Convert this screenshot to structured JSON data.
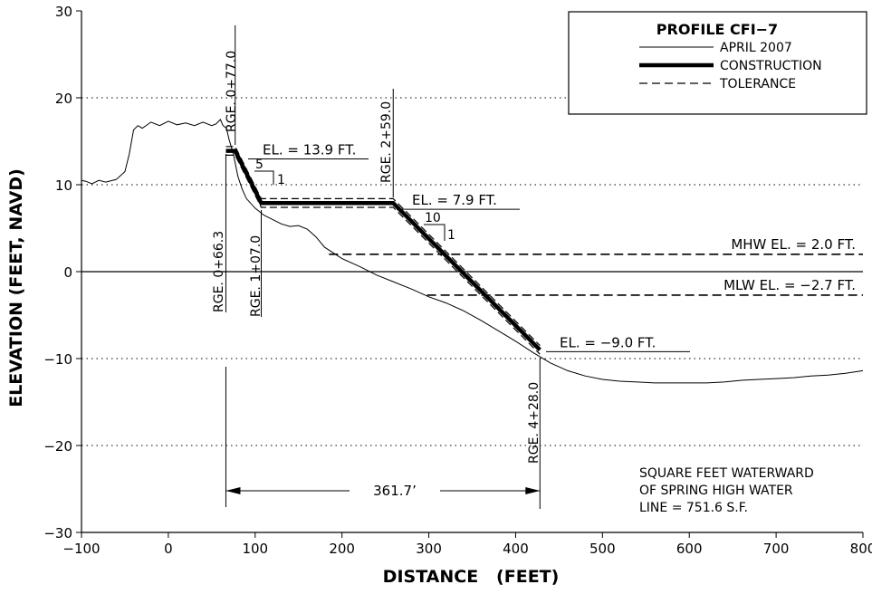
{
  "chart_data": {
    "type": "line",
    "xlabel": "DISTANCE   (FEET)",
    "ylabel": "ELEVATION  (FEET, NAVD)",
    "xlim": [
      -100,
      800
    ],
    "ylim": [
      -30,
      30
    ],
    "x_ticks": [
      -100,
      0,
      100,
      200,
      300,
      400,
      500,
      600,
      700,
      800
    ],
    "y_ticks": [
      -30,
      -20,
      -10,
      0,
      10,
      20,
      30
    ],
    "x_tick_labels": [
      "−100",
      "0",
      "100",
      "200",
      "300",
      "400",
      "500",
      "600",
      "700",
      "800"
    ],
    "y_tick_labels": [
      "−30",
      "−20",
      "−10",
      "0",
      "10",
      "20",
      "30"
    ],
    "grid": "dotted horizontal at 20, 10, -10, -20; solid zero line",
    "legend": {
      "title": "PROFILE CFI−7",
      "placement": "top-right",
      "entries": [
        {
          "label": "APRIL 2007",
          "style": "thin solid"
        },
        {
          "label": "CONSTRUCTION",
          "style": "thick solid"
        },
        {
          "label": "TOLERANCE",
          "style": "dashed"
        }
      ]
    },
    "series": [
      {
        "name": "APRIL 2007",
        "x": [
          -100,
          -95,
          -88,
          -80,
          -72,
          -60,
          -50,
          -45,
          -40,
          -35,
          -30,
          -20,
          -10,
          0,
          10,
          20,
          30,
          40,
          50,
          55,
          60,
          63,
          67,
          70,
          75,
          80,
          85,
          90,
          100,
          110,
          120,
          130,
          140,
          150,
          160,
          170,
          180,
          200,
          220,
          240,
          260,
          280,
          300,
          320,
          340,
          360,
          380,
          400,
          420,
          440,
          460,
          480,
          500,
          520,
          540,
          560,
          580,
          600,
          620,
          640,
          660,
          680,
          700,
          720,
          740,
          760,
          780,
          800
        ],
        "y": [
          10.5,
          10.4,
          10.1,
          10.5,
          10.3,
          10.6,
          11.5,
          13.5,
          16.3,
          16.8,
          16.5,
          17.2,
          16.8,
          17.3,
          16.9,
          17.1,
          16.8,
          17.2,
          16.8,
          17.0,
          17.5,
          16.8,
          16.5,
          15.2,
          13.5,
          11.0,
          9.5,
          8.4,
          7.3,
          6.5,
          6.0,
          5.5,
          5.2,
          5.3,
          4.9,
          4.0,
          2.8,
          1.5,
          0.6,
          -0.4,
          -1.2,
          -2.0,
          -2.9,
          -3.6,
          -4.5,
          -5.6,
          -6.8,
          -8.0,
          -9.3,
          -10.5,
          -11.4,
          -12.0,
          -12.4,
          -12.6,
          -12.7,
          -12.8,
          -12.8,
          -12.8,
          -12.8,
          -12.7,
          -12.5,
          -12.4,
          -12.3,
          -12.2,
          -12.0,
          -11.9,
          -11.7,
          -11.4
        ]
      },
      {
        "name": "CONSTRUCTION",
        "x": [
          66.3,
          77.0,
          107.0,
          259.0,
          428.0
        ],
        "y": [
          13.9,
          13.9,
          7.9,
          7.9,
          -9.0
        ]
      },
      {
        "name": "TOLERANCE",
        "x": [
          66.3,
          77.0,
          107.0,
          259.0,
          428.0
        ],
        "y": [
          14.4,
          14.4,
          8.4,
          8.4,
          -8.5
        ]
      },
      {
        "name": "TOLERANCE",
        "x": [
          66.3,
          77.0,
          107.0,
          259.0,
          428.0
        ],
        "y": [
          13.4,
          13.4,
          7.4,
          7.4,
          -9.5
        ]
      }
    ],
    "reference_lines": [
      {
        "label": "MHW EL. = 2.0 FT.",
        "y": 2.0,
        "x_start": 185,
        "x_end": 800
      },
      {
        "label": "MLW EL. = −2.7 FT.",
        "y": -2.7,
        "x_start": 298,
        "x_end": 800
      }
    ],
    "annotations": {
      "el_top": "EL. = 13.9 FT.",
      "el_bench": "EL. = 7.9 FT.",
      "el_toe": "EL. = −9.0 FT.",
      "slope1_run": "5",
      "slope1_rise": "1",
      "slope2_run": "10",
      "slope2_rise": "1",
      "rge_0_66_3": "RGE. 0+66.3",
      "rge_0_77_0": "RGE. 0+77.0",
      "rge_1_07_0": "RGE. 1+07.0",
      "rge_2_59_0": "RGE. 2+59.0",
      "rge_4_28_0": "RGE. 4+28.0",
      "dimension": "361.7’",
      "dimension_from": 66.3,
      "dimension_to": 428.0,
      "note_line1": "SQUARE FEET WATERWARD",
      "note_line2": "OF SPRING HIGH WATER",
      "note_line3": "LINE = 751.6 S.F."
    }
  }
}
